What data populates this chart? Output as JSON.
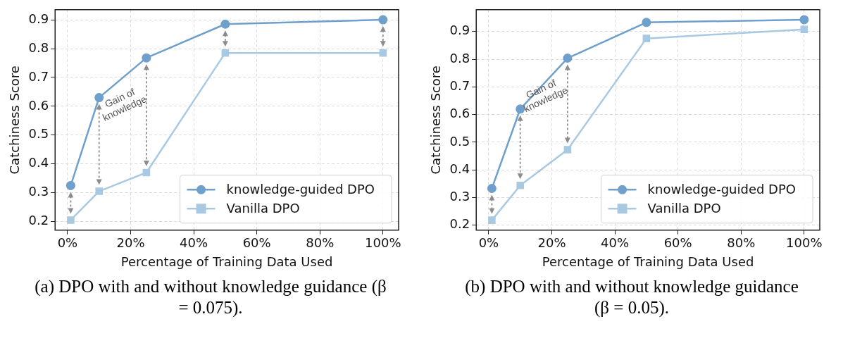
{
  "chart_data": [
    {
      "type": "line",
      "xlabel": "Percentage of Training Data Used",
      "ylabel": "Catchiness Score",
      "x": [
        1,
        10,
        25,
        50,
        100
      ],
      "xlim": [
        -3.95,
        104.95
      ],
      "xticks": [
        {
          "value": 0,
          "label": "0%"
        },
        {
          "value": 20,
          "label": "20%"
        },
        {
          "value": 40,
          "label": "40%"
        },
        {
          "value": 60,
          "label": "60%"
        },
        {
          "value": 80,
          "label": "80%"
        },
        {
          "value": 100,
          "label": "100%"
        }
      ],
      "ylim": [
        0.17,
        0.935
      ],
      "yticks": [
        0.2,
        0.3,
        0.4,
        0.5,
        0.6,
        0.7,
        0.8,
        0.9
      ],
      "grid": true,
      "legend": "bottom right",
      "series": [
        {
          "name": "knowledge-guided DPO",
          "color": "#6f9fcb",
          "marker": "circle",
          "values": [
            0.325,
            0.63,
            0.768,
            0.885,
            0.9
          ]
        },
        {
          "name": "Vanilla DPO",
          "color": "#a9c9e2",
          "marker": "square",
          "values": [
            0.205,
            0.305,
            0.37,
            0.785,
            0.785
          ]
        }
      ],
      "annotations": [
        {
          "text": "Gain of\nknowledge",
          "x": 25,
          "y": 0.768
        },
        "(a) DPO with and without knowledge guidance (β = 0.075)."
      ]
    },
    {
      "type": "line",
      "xlabel": "Percentage of Training Data Used",
      "ylabel": "Catchiness Score",
      "x": [
        1,
        10,
        25,
        50,
        100
      ],
      "xlim": [
        -3.95,
        104.95
      ],
      "xticks": [
        {
          "value": 0,
          "label": "0%"
        },
        {
          "value": 20,
          "label": "20%"
        },
        {
          "value": 40,
          "label": "40%"
        },
        {
          "value": 60,
          "label": "60%"
        },
        {
          "value": 80,
          "label": "80%"
        },
        {
          "value": 100,
          "label": "100%"
        }
      ],
      "ylim": [
        0.182,
        0.979
      ],
      "yticks": [
        0.2,
        0.3,
        0.4,
        0.5,
        0.6,
        0.7,
        0.8,
        0.9
      ],
      "grid": true,
      "legend": "bottom right",
      "series": [
        {
          "name": "knowledge-guided DPO",
          "color": "#6f9fcb",
          "marker": "circle",
          "values": [
            0.333,
            0.62,
            0.804,
            0.933,
            0.943
          ]
        },
        {
          "name": "Vanilla DPO",
          "color": "#a9c9e2",
          "marker": "square",
          "values": [
            0.218,
            0.344,
            0.473,
            0.875,
            0.908
          ]
        }
      ],
      "annotations": [
        {
          "text": "Gain of\nknowledge",
          "x": 25,
          "y": 0.804
        },
        "(b) DPO with and without knowledge guidance (β = 0.05)."
      ]
    }
  ]
}
